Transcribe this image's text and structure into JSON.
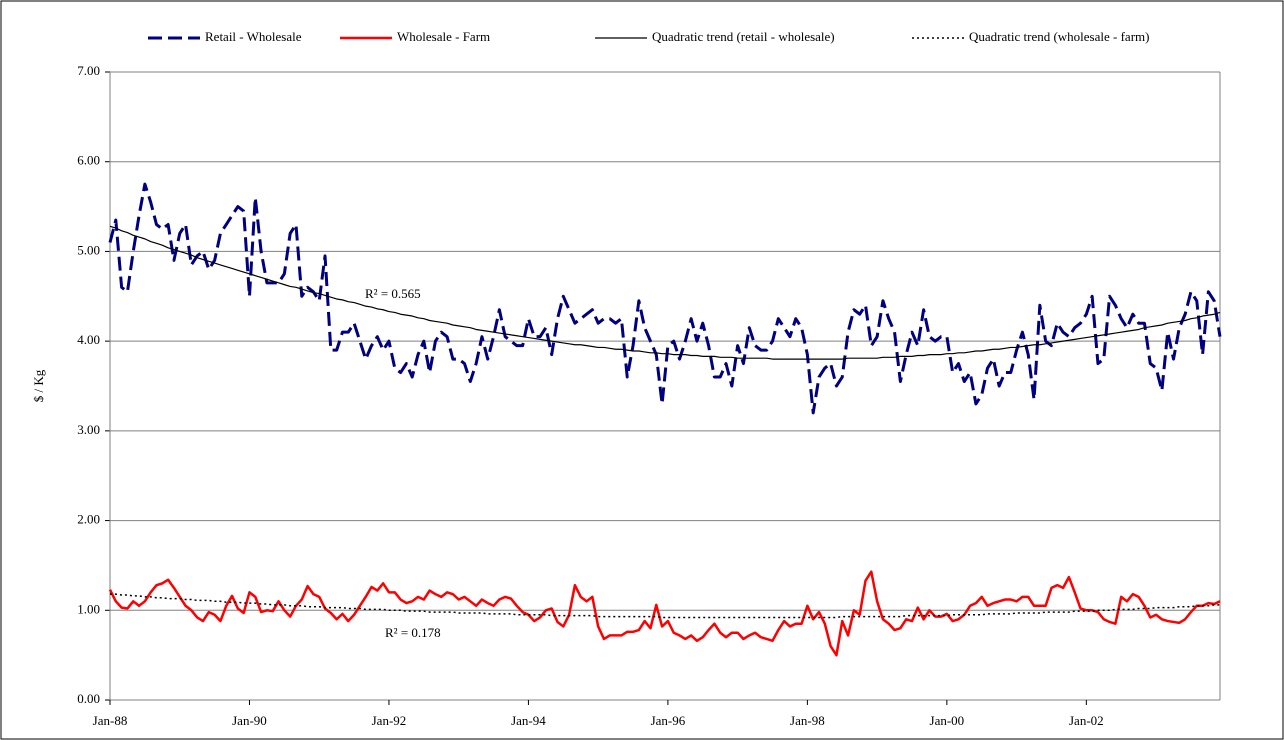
{
  "chart_data": {
    "type": "line",
    "y_label": "$ / Kg",
    "categories": [
      "Jan-88",
      null,
      null,
      null,
      null,
      null,
      null,
      null,
      null,
      null,
      null,
      null,
      null,
      null,
      null,
      null,
      null,
      null,
      null,
      null,
      null,
      null,
      null,
      null,
      "Jan-90",
      null,
      null,
      null,
      null,
      null,
      null,
      null,
      null,
      null,
      null,
      null,
      null,
      null,
      null,
      null,
      null,
      null,
      null,
      null,
      null,
      null,
      null,
      null,
      "Jan-92",
      null,
      null,
      null,
      null,
      null,
      null,
      null,
      null,
      null,
      null,
      null,
      null,
      null,
      null,
      null,
      null,
      null,
      null,
      null,
      null,
      null,
      null,
      null,
      "Jan-94",
      null,
      null,
      null,
      null,
      null,
      null,
      null,
      null,
      null,
      null,
      null,
      null,
      null,
      null,
      null,
      null,
      null,
      null,
      null,
      null,
      null,
      null,
      null,
      "Jan-96",
      null,
      null,
      null,
      null,
      null,
      null,
      null,
      null,
      null,
      null,
      null,
      null,
      null,
      null,
      null,
      null,
      null,
      null,
      null,
      null,
      null,
      null,
      null,
      "Jan-98",
      null,
      null,
      null,
      null,
      null,
      null,
      null,
      null,
      null,
      null,
      null,
      null,
      null,
      null,
      null,
      null,
      null,
      null,
      null,
      null,
      null,
      null,
      null,
      "Jan-00",
      null,
      null,
      null,
      null,
      null,
      null,
      null,
      null,
      null,
      null,
      null,
      null,
      null,
      null,
      null,
      null,
      null,
      null,
      null,
      null,
      null,
      null,
      null,
      "Jan-02",
      null,
      null,
      null,
      null,
      null,
      null,
      null,
      null,
      null,
      null,
      null,
      null,
      null,
      null,
      null,
      null,
      null,
      null,
      null,
      null,
      null,
      null,
      null
    ],
    "ylim": [
      0,
      7
    ],
    "yticks": [
      {
        "value": 0,
        "label": "0.00"
      },
      {
        "value": 1,
        "label": "1.00"
      },
      {
        "value": 2,
        "label": "2.00"
      },
      {
        "value": 3,
        "label": "3.00"
      },
      {
        "value": 4,
        "label": "4.00"
      },
      {
        "value": 5,
        "label": "5.00"
      },
      {
        "value": 6,
        "label": "6.00"
      },
      {
        "value": 7,
        "label": "7.00"
      }
    ],
    "grid": true,
    "legend": "top",
    "series": [
      {
        "name": "Retail - Wholesale",
        "color": "#000080",
        "line_style": "dashed",
        "values": [
          5.1,
          5.35,
          4.6,
          4.55,
          5.0,
          5.4,
          5.75,
          5.55,
          5.3,
          5.25,
          5.3,
          4.9,
          5.2,
          5.3,
          4.85,
          4.95,
          5.0,
          4.8,
          4.9,
          5.2,
          5.3,
          5.4,
          5.5,
          5.45,
          4.5,
          5.6,
          5.0,
          4.65,
          4.65,
          4.65,
          4.75,
          5.2,
          5.3,
          4.5,
          4.6,
          4.55,
          4.45,
          4.95,
          3.9,
          3.9,
          4.1,
          4.1,
          4.2,
          4.0,
          3.8,
          3.95,
          4.05,
          3.9,
          4.0,
          3.7,
          3.65,
          3.75,
          3.6,
          3.85,
          4.0,
          3.65,
          4.0,
          4.1,
          4.05,
          3.8,
          3.8,
          3.75,
          3.55,
          3.75,
          4.05,
          3.8,
          4.05,
          4.35,
          4.05,
          4.0,
          3.95,
          3.95,
          4.25,
          4.05,
          4.05,
          4.15,
          3.85,
          4.25,
          4.5,
          4.35,
          4.2,
          4.25,
          4.3,
          4.35,
          4.2,
          4.25,
          4.25,
          4.2,
          4.25,
          3.6,
          3.95,
          4.45,
          4.15,
          4.0,
          3.85,
          3.3,
          3.95,
          4.0,
          3.8,
          4.0,
          4.25,
          4.0,
          4.2,
          3.95,
          3.6,
          3.6,
          3.75,
          3.5,
          3.95,
          3.75,
          4.15,
          3.95,
          3.9,
          3.9,
          4.0,
          4.25,
          4.15,
          4.05,
          4.25,
          4.15,
          3.85,
          3.2,
          3.6,
          3.7,
          3.75,
          3.5,
          3.6,
          4.1,
          4.35,
          4.3,
          4.4,
          3.95,
          4.05,
          4.45,
          4.25,
          4.1,
          3.55,
          3.85,
          4.1,
          3.95,
          4.35,
          4.05,
          4.0,
          4.05,
          4.05,
          3.65,
          3.75,
          3.55,
          3.65,
          3.3,
          3.4,
          3.7,
          3.8,
          3.5,
          3.65,
          3.65,
          3.9,
          4.1,
          3.85,
          3.35,
          4.4,
          4.0,
          3.95,
          4.2,
          4.1,
          4.05,
          4.15,
          4.2,
          4.3,
          4.5,
          3.75,
          3.8,
          4.5,
          4.4,
          4.25,
          4.15,
          4.3,
          4.2,
          4.2,
          3.75,
          3.7,
          3.45,
          4.1,
          3.8,
          4.15,
          4.3,
          4.55,
          4.45,
          3.85,
          4.55,
          4.45,
          4.05
        ]
      },
      {
        "name": "Wholesale - Farm",
        "color": "#ff0000",
        "line_style": "solid",
        "values": [
          1.23,
          1.1,
          1.03,
          1.02,
          1.1,
          1.05,
          1.1,
          1.2,
          1.28,
          1.3,
          1.34,
          1.25,
          1.15,
          1.05,
          1.0,
          0.92,
          0.88,
          0.98,
          0.95,
          0.88,
          1.05,
          1.16,
          1.02,
          0.97,
          1.2,
          1.15,
          0.98,
          1.0,
          0.99,
          1.1,
          1.0,
          0.93,
          1.05,
          1.12,
          1.27,
          1.18,
          1.15,
          1.02,
          0.97,
          0.9,
          0.96,
          0.88,
          0.95,
          1.05,
          1.15,
          1.26,
          1.22,
          1.3,
          1.2,
          1.2,
          1.12,
          1.08,
          1.1,
          1.15,
          1.12,
          1.22,
          1.18,
          1.15,
          1.2,
          1.18,
          1.12,
          1.15,
          1.1,
          1.05,
          1.12,
          1.08,
          1.05,
          1.12,
          1.15,
          1.13,
          1.05,
          0.98,
          0.95,
          0.88,
          0.92,
          1.0,
          1.02,
          0.87,
          0.82,
          0.95,
          1.28,
          1.15,
          1.1,
          1.15,
          0.82,
          0.68,
          0.72,
          0.72,
          0.72,
          0.76,
          0.76,
          0.78,
          0.88,
          0.8,
          1.06,
          0.82,
          0.88,
          0.75,
          0.72,
          0.68,
          0.72,
          0.66,
          0.7,
          0.78,
          0.85,
          0.75,
          0.7,
          0.75,
          0.75,
          0.68,
          0.72,
          0.75,
          0.7,
          0.68,
          0.66,
          0.78,
          0.88,
          0.82,
          0.85,
          0.85,
          1.05,
          0.9,
          0.98,
          0.85,
          0.6,
          0.5,
          0.88,
          0.72,
          1.0,
          0.95,
          1.33,
          1.43,
          1.1,
          0.9,
          0.85,
          0.78,
          0.8,
          0.9,
          0.88,
          1.03,
          0.9,
          1.0,
          0.93,
          0.93,
          0.96,
          0.88,
          0.9,
          0.95,
          1.05,
          1.08,
          1.15,
          1.05,
          1.08,
          1.1,
          1.12,
          1.12,
          1.1,
          1.15,
          1.15,
          1.05,
          1.05,
          1.05,
          1.25,
          1.28,
          1.25,
          1.37,
          1.2,
          1.02,
          1.0,
          1.0,
          0.98,
          0.9,
          0.87,
          0.85,
          1.15,
          1.1,
          1.18,
          1.15,
          1.05,
          0.92,
          0.95,
          0.9,
          0.88,
          0.87,
          0.86,
          0.9,
          0.98,
          1.05,
          1.05,
          1.08,
          1.07,
          1.1
        ]
      },
      {
        "name": "Quadratic trend (retail - wholesale)",
        "color": "#000000",
        "line_style": "thin",
        "annotation": "R² = 0.565",
        "values": [
          5.28,
          5.26,
          5.23,
          5.21,
          5.18,
          5.16,
          5.14,
          5.11,
          5.09,
          5.07,
          5.04,
          5.02,
          5.0,
          4.98,
          4.96,
          4.93,
          4.91,
          4.89,
          4.87,
          4.85,
          4.83,
          4.81,
          4.79,
          4.77,
          4.75,
          4.73,
          4.71,
          4.69,
          4.67,
          4.65,
          4.63,
          4.61,
          4.6,
          4.58,
          4.56,
          4.54,
          4.53,
          4.51,
          4.49,
          4.47,
          4.46,
          4.44,
          4.43,
          4.41,
          4.39,
          4.38,
          4.36,
          4.35,
          4.33,
          4.32,
          4.3,
          4.29,
          4.28,
          4.26,
          4.25,
          4.23,
          4.22,
          4.21,
          4.2,
          4.18,
          4.17,
          4.16,
          4.15,
          4.13,
          4.12,
          4.11,
          4.1,
          4.09,
          4.08,
          4.07,
          4.06,
          4.05,
          4.04,
          4.03,
          4.02,
          4.01,
          4.0,
          3.99,
          3.98,
          3.97,
          3.96,
          3.96,
          3.95,
          3.94,
          3.93,
          3.93,
          3.92,
          3.91,
          3.91,
          3.9,
          3.89,
          3.89,
          3.88,
          3.87,
          3.87,
          3.86,
          3.86,
          3.85,
          3.85,
          3.85,
          3.84,
          3.84,
          3.83,
          3.83,
          3.83,
          3.82,
          3.82,
          3.82,
          3.81,
          3.81,
          3.81,
          3.81,
          3.81,
          3.81,
          3.8,
          3.8,
          3.8,
          3.8,
          3.8,
          3.8,
          3.8,
          3.8,
          3.8,
          3.8,
          3.8,
          3.8,
          3.8,
          3.81,
          3.81,
          3.81,
          3.81,
          3.81,
          3.81,
          3.82,
          3.82,
          3.82,
          3.83,
          3.83,
          3.83,
          3.84,
          3.84,
          3.85,
          3.85,
          3.85,
          3.86,
          3.86,
          3.87,
          3.87,
          3.88,
          3.89,
          3.89,
          3.9,
          3.91,
          3.91,
          3.92,
          3.93,
          3.93,
          3.94,
          3.95,
          3.96,
          3.96,
          3.97,
          3.98,
          3.99,
          4.0,
          4.01,
          4.02,
          4.03,
          4.04,
          4.05,
          4.06,
          4.07,
          4.08,
          4.09,
          4.1,
          4.11,
          4.12,
          4.13,
          4.15,
          4.16,
          4.17,
          4.18,
          4.2,
          4.21,
          4.22,
          4.23,
          4.25,
          4.26,
          4.28,
          4.29,
          4.3,
          4.32
        ]
      },
      {
        "name": "Quadratic trend (wholesale - farm)",
        "color": "#000000",
        "line_style": "dotted",
        "annotation": "R² = 0.178",
        "values": [
          1.18,
          1.18,
          1.17,
          1.17,
          1.16,
          1.16,
          1.15,
          1.15,
          1.14,
          1.14,
          1.13,
          1.13,
          1.13,
          1.12,
          1.12,
          1.11,
          1.11,
          1.11,
          1.1,
          1.1,
          1.09,
          1.09,
          1.09,
          1.08,
          1.08,
          1.08,
          1.07,
          1.07,
          1.06,
          1.06,
          1.06,
          1.05,
          1.05,
          1.05,
          1.04,
          1.04,
          1.04,
          1.03,
          1.03,
          1.03,
          1.03,
          1.02,
          1.02,
          1.02,
          1.01,
          1.01,
          1.01,
          1.01,
          1.0,
          1.0,
          1.0,
          0.99,
          0.99,
          0.99,
          0.99,
          0.98,
          0.98,
          0.98,
          0.98,
          0.98,
          0.97,
          0.97,
          0.97,
          0.97,
          0.97,
          0.96,
          0.96,
          0.96,
          0.96,
          0.96,
          0.95,
          0.95,
          0.95,
          0.95,
          0.95,
          0.95,
          0.94,
          0.94,
          0.94,
          0.94,
          0.94,
          0.94,
          0.94,
          0.94,
          0.93,
          0.93,
          0.93,
          0.93,
          0.93,
          0.93,
          0.93,
          0.93,
          0.93,
          0.93,
          0.93,
          0.92,
          0.92,
          0.92,
          0.92,
          0.92,
          0.92,
          0.92,
          0.92,
          0.92,
          0.92,
          0.92,
          0.92,
          0.92,
          0.92,
          0.92,
          0.92,
          0.92,
          0.92,
          0.92,
          0.92,
          0.92,
          0.92,
          0.92,
          0.92,
          0.92,
          0.92,
          0.92,
          0.92,
          0.92,
          0.92,
          0.92,
          0.93,
          0.93,
          0.93,
          0.93,
          0.93,
          0.93,
          0.93,
          0.93,
          0.93,
          0.93,
          0.93,
          0.94,
          0.94,
          0.94,
          0.94,
          0.94,
          0.94,
          0.94,
          0.94,
          0.95,
          0.95,
          0.95,
          0.95,
          0.95,
          0.95,
          0.96,
          0.96,
          0.96,
          0.96,
          0.96,
          0.97,
          0.97,
          0.97,
          0.97,
          0.97,
          0.98,
          0.98,
          0.98,
          0.98,
          0.98,
          0.99,
          0.99,
          0.99,
          0.99,
          1.0,
          1.0,
          1.0,
          1.01,
          1.01,
          1.01,
          1.01,
          1.02,
          1.02,
          1.02,
          1.03,
          1.03,
          1.03,
          1.03,
          1.04,
          1.04,
          1.04,
          1.05,
          1.05,
          1.05,
          1.06,
          1.06
        ]
      }
    ]
  }
}
